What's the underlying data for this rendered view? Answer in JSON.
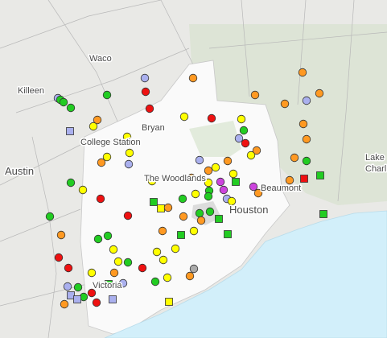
{
  "map": {
    "labels": [
      "Waco",
      "Killeen",
      "Bryan",
      "College Station",
      "Austin",
      "The Woodlands",
      "Houston",
      "Beaumont",
      "Lake",
      "Charl",
      "Victoria"
    ]
  }
}
